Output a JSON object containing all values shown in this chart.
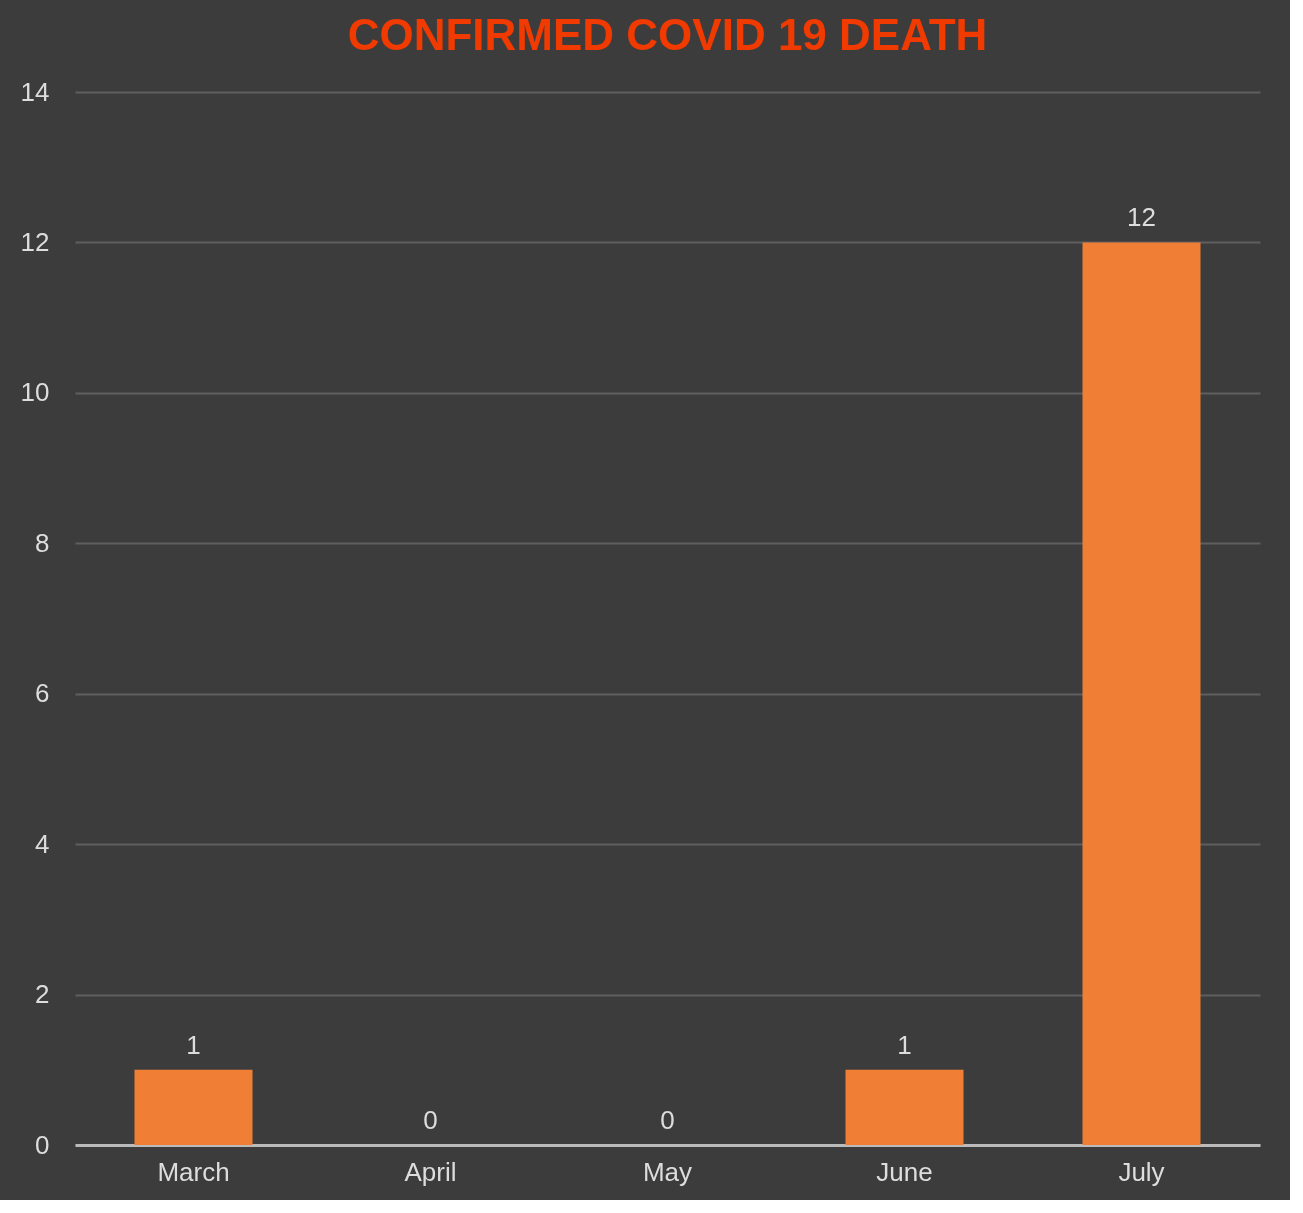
{
  "chart_data": {
    "type": "bar",
    "title": "CONFIRMED COVID 19 DEATH",
    "categories": [
      "March",
      "April",
      "May",
      "June",
      "July"
    ],
    "values": [
      1,
      0,
      0,
      1,
      12
    ],
    "color": "#f07f35",
    "ylim": [
      0,
      14
    ],
    "yticks": [
      0,
      2,
      4,
      6,
      8,
      10,
      12,
      14
    ],
    "grid": "y",
    "data_labels": true
  }
}
